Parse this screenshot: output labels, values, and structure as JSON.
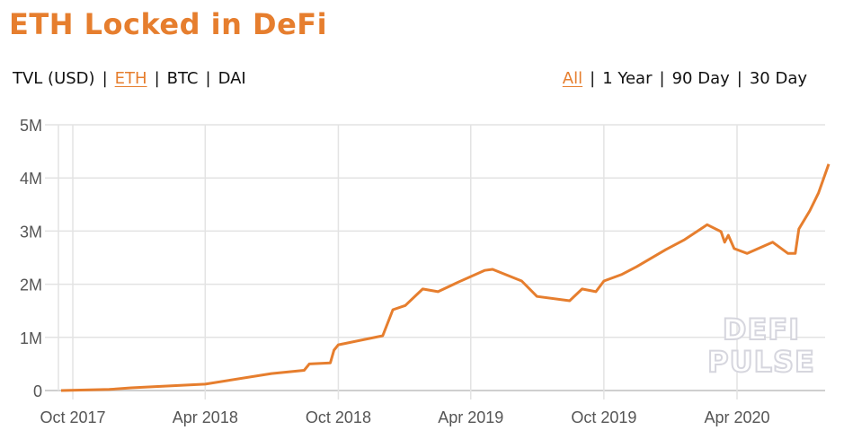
{
  "header": {
    "title": "ETH Locked in DeFi"
  },
  "denomination_toggle": {
    "options": [
      {
        "label": "TVL (USD)",
        "active": false
      },
      {
        "label": "ETH",
        "active": true
      },
      {
        "label": "BTC",
        "active": false
      },
      {
        "label": "DAI",
        "active": false
      }
    ],
    "separator": "|"
  },
  "range_toggle": {
    "options": [
      {
        "label": "All",
        "active": true
      },
      {
        "label": "1 Year",
        "active": false
      },
      {
        "label": "90 Day",
        "active": false
      },
      {
        "label": "30 Day",
        "active": false
      }
    ],
    "separator": "|"
  },
  "watermark": {
    "line1": "DEFI",
    "line2": "PULSE"
  },
  "colors": {
    "accent": "#e67e2e",
    "line": "#e67e2e",
    "grid": "#e3e3e3",
    "tick_text": "#555555"
  },
  "chart_data": {
    "type": "line",
    "title": "ETH Locked in DeFi",
    "xlabel": "",
    "ylabel": "",
    "ylim": [
      0,
      5000000
    ],
    "y_ticks": [
      "0",
      "1M",
      "2M",
      "3M",
      "4M",
      "5M"
    ],
    "x_ticks": [
      "Oct 2017",
      "Apr 2018",
      "Oct 2018",
      "Apr 2019",
      "Oct 2019",
      "Apr 2020"
    ],
    "grid": true,
    "legend": null,
    "series": [
      {
        "name": "ETH",
        "x": [
          "2017-09-15",
          "2017-11-20",
          "2017-12-20",
          "2018-04-01",
          "2018-07-01",
          "2018-08-15",
          "2018-08-22",
          "2018-09-20",
          "2018-09-25",
          "2018-10-01",
          "2018-12-01",
          "2018-12-15",
          "2019-01-01",
          "2019-01-25",
          "2019-02-15",
          "2019-03-15",
          "2019-04-20",
          "2019-05-01",
          "2019-06-10",
          "2019-07-01",
          "2019-08-15",
          "2019-09-01",
          "2019-09-20",
          "2019-10-01",
          "2019-10-25",
          "2019-11-15",
          "2019-12-25",
          "2020-01-20",
          "2020-02-20",
          "2020-03-10",
          "2020-03-15",
          "2020-03-20",
          "2020-03-28",
          "2020-04-15",
          "2020-05-20",
          "2020-06-10",
          "2020-06-20",
          "2020-06-25",
          "2020-07-10",
          "2020-07-22",
          "2020-08-05"
        ],
        "values": [
          0,
          20000,
          50000,
          120000,
          320000,
          380000,
          500000,
          520000,
          760000,
          860000,
          1030000,
          1520000,
          1600000,
          1910000,
          1860000,
          2040000,
          2260000,
          2280000,
          2060000,
          1770000,
          1690000,
          1910000,
          1860000,
          2060000,
          2180000,
          2330000,
          2650000,
          2840000,
          3120000,
          2990000,
          2790000,
          2920000,
          2670000,
          2580000,
          2790000,
          2580000,
          2580000,
          3040000,
          3380000,
          3720000,
          4260000
        ]
      }
    ]
  }
}
